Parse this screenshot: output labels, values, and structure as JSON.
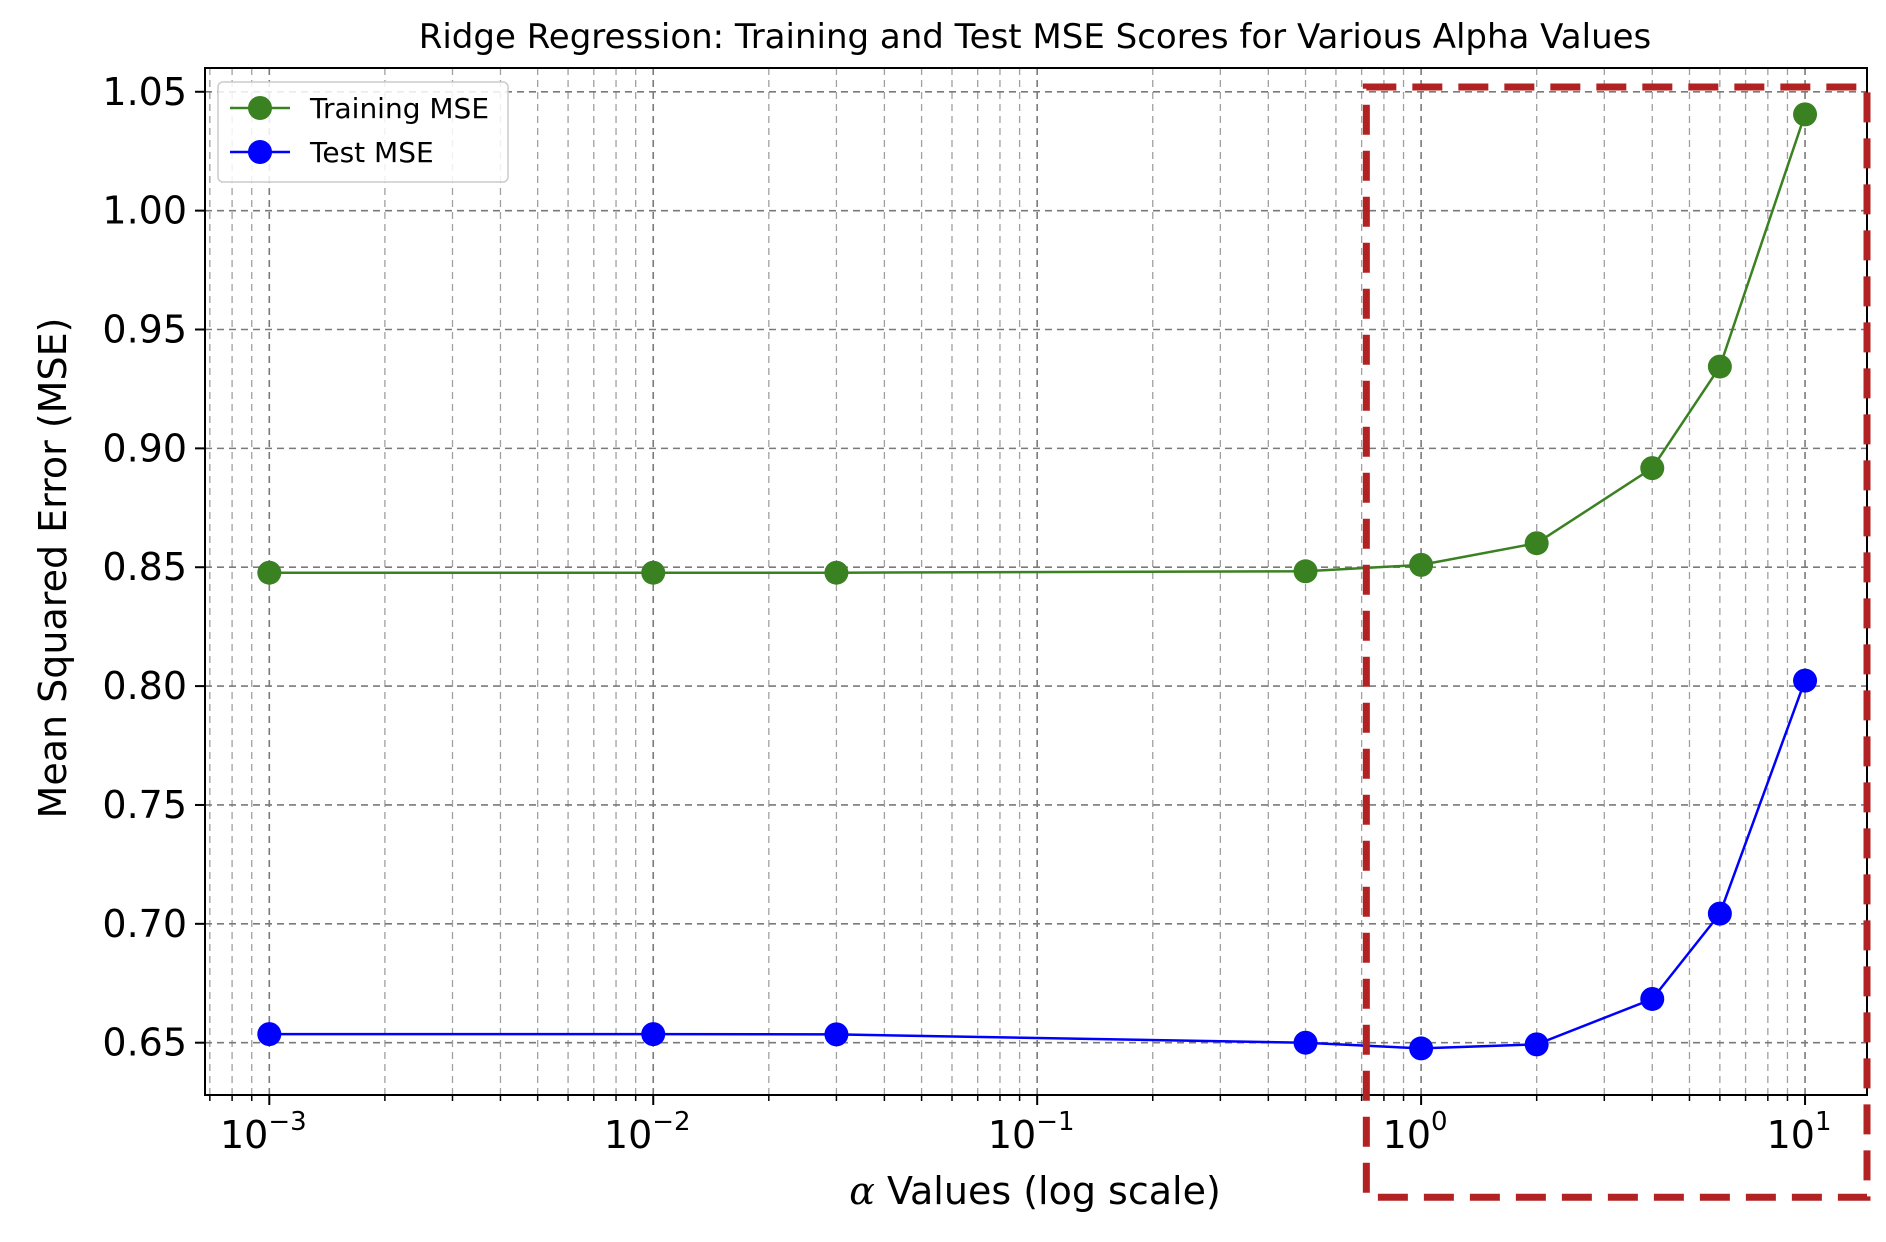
{
  "chart_data": {
    "type": "line",
    "title": "Ridge Regression: Training and Test MSE Scores for Various Alpha Values",
    "xlabel": "α Values (log scale)",
    "ylabel": "Mean Squared Error (MSE)",
    "xscale": "log",
    "xlim": [
      0.00068,
      14.5
    ],
    "ylim": [
      0.628,
      1.06
    ],
    "grid": "both (major and minor), dashed",
    "legend_position": "top-left",
    "x": [
      0.001,
      0.01,
      0.03,
      0.5,
      1,
      2,
      4,
      6,
      10
    ],
    "x_tick_labels": [
      {
        "base": "10",
        "exp": "−3",
        "value": 0.001
      },
      {
        "base": "10",
        "exp": "−2",
        "value": 0.01
      },
      {
        "base": "10",
        "exp": "−1",
        "value": 0.1
      },
      {
        "base": "10",
        "exp": "0",
        "value": 1
      },
      {
        "base": "10",
        "exp": "1",
        "value": 10
      }
    ],
    "y_ticks": [
      "0.65",
      "0.70",
      "0.75",
      "0.80",
      "0.85",
      "0.90",
      "0.95",
      "1.00",
      "1.05"
    ],
    "series": [
      {
        "name": "Training MSE",
        "color": "#3a8122",
        "values": [
          0.8477,
          0.8477,
          0.8477,
          0.8483,
          0.851,
          0.8601,
          0.8917,
          0.9344,
          1.0405
        ]
      },
      {
        "name": "Test MSE",
        "color": "#0000ff",
        "values": [
          0.6536,
          0.6536,
          0.6535,
          0.65,
          0.6476,
          0.6493,
          0.6684,
          0.7043,
          0.8023
        ]
      }
    ],
    "annotations": [
      {
        "type": "dashed-rectangle",
        "color": "#b22222",
        "x_range": [
          0.72,
          14.5
        ],
        "y_range": [
          0.585,
          1.052
        ]
      }
    ]
  }
}
